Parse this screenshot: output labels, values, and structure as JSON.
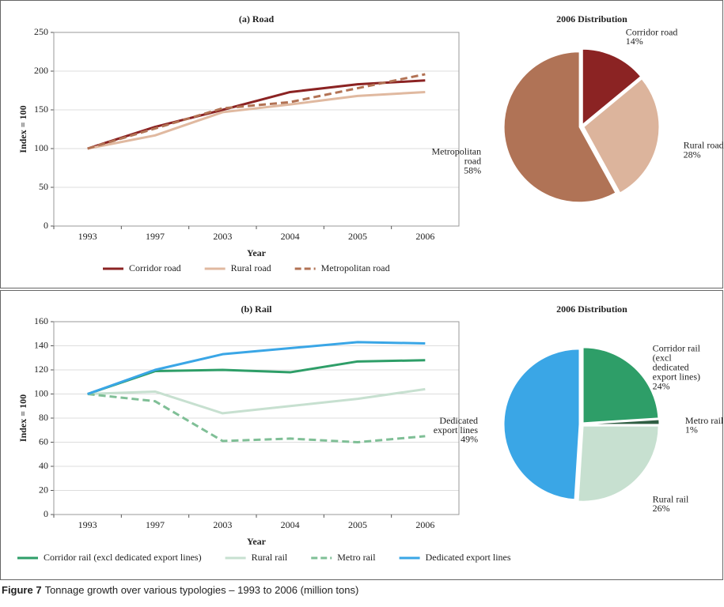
{
  "chart_data": [
    {
      "type": "line",
      "title": "(a) Road",
      "x_label": "Year",
      "y_label": "Index = 100",
      "categories": [
        "1993",
        "1997",
        "2003",
        "2004",
        "2005",
        "2006"
      ],
      "ylim": [
        0,
        250
      ],
      "yticks": [
        0,
        50,
        100,
        150,
        200,
        250
      ],
      "grid": true,
      "series": [
        {
          "name": "Corridor road",
          "color": "#8b2323",
          "values": [
            100,
            128,
            150,
            173,
            183,
            188
          ]
        },
        {
          "name": "Rural road",
          "color": "#e0b9a0",
          "values": [
            100,
            117,
            147,
            157,
            168,
            173
          ]
        },
        {
          "name": "Metropolitan road",
          "color": "#b27254",
          "dashed": true,
          "values": [
            100,
            126,
            152,
            160,
            178,
            196
          ]
        }
      ]
    },
    {
      "type": "pie",
      "title": "2006 Distribution",
      "categories": [
        "Corridor road",
        "Rural road",
        "Metropolitan road"
      ],
      "values": [
        14,
        28,
        58
      ],
      "value_labels": [
        "14%",
        "28%",
        "58%"
      ],
      "colors": [
        "#8b2323",
        "#dcb49c",
        "#b07356"
      ]
    },
    {
      "type": "line",
      "title": "(b) Rail",
      "x_label": "Year",
      "y_label": "Index = 100",
      "categories": [
        "1993",
        "1997",
        "2003",
        "2004",
        "2005",
        "2006"
      ],
      "ylim": [
        0,
        160
      ],
      "yticks": [
        0,
        20,
        40,
        60,
        80,
        100,
        120,
        140,
        160
      ],
      "grid": true,
      "series": [
        {
          "name": "Corridor rail (excl dedicated export lines)",
          "color": "#2e9e68",
          "values": [
            100,
            119,
            120,
            118,
            127,
            128
          ]
        },
        {
          "name": "Rural rail",
          "color": "#c7e0d0",
          "values": [
            100,
            102,
            84,
            90,
            96,
            104
          ]
        },
        {
          "name": "Metro rail",
          "color": "#7fbf96",
          "dashed": true,
          "values": [
            100,
            94,
            61,
            63,
            60,
            65
          ]
        },
        {
          "name": "Dedicated export lines",
          "color": "#3aa6e6",
          "values": [
            100,
            120,
            133,
            138,
            143,
            142
          ]
        }
      ]
    },
    {
      "type": "pie",
      "title": "2006 Distribution",
      "categories": [
        "Corridor rail (excl dedicated export lines)",
        "Metro rail",
        "Rural rail",
        "Dedicated export lines"
      ],
      "values": [
        24,
        1,
        26,
        49
      ],
      "value_labels": [
        "24%",
        "1%",
        "26%",
        "49%"
      ],
      "colors": [
        "#2e9e68",
        "#2f5e43",
        "#c7e0d0",
        "#3aa6e6"
      ]
    }
  ],
  "caption": {
    "label": "Figure 7",
    "text": "Tonnage growth over various typologies – 1993 to 2006 (million tons)"
  }
}
